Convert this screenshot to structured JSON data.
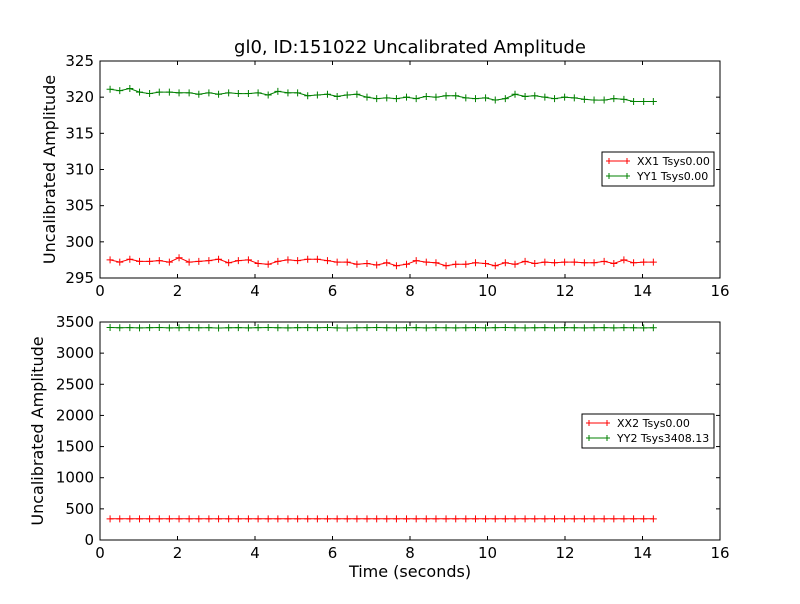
{
  "figure_title": "gl0, ID:151022 Uncalibrated Amplitude",
  "chart_data": [
    {
      "type": "line",
      "title": "gl0, ID:151022 Uncalibrated Amplitude",
      "xlabel": "",
      "ylabel": "Uncalibrated Amplitude",
      "xlim": [
        0,
        16
      ],
      "ylim": [
        295,
        325
      ],
      "xticks": [
        0,
        2,
        4,
        6,
        8,
        10,
        12,
        14,
        16
      ],
      "yticks": [
        295,
        300,
        305,
        310,
        315,
        320,
        325
      ],
      "legend_position": "center-right",
      "x": [
        0.26,
        0.51,
        0.77,
        1.02,
        1.28,
        1.53,
        1.79,
        2.04,
        2.3,
        2.55,
        2.81,
        3.06,
        3.32,
        3.57,
        3.83,
        4.08,
        4.34,
        4.59,
        4.85,
        5.1,
        5.36,
        5.61,
        5.87,
        6.12,
        6.38,
        6.63,
        6.89,
        7.14,
        7.4,
        7.65,
        7.91,
        8.16,
        8.42,
        8.67,
        8.93,
        9.18,
        9.44,
        9.69,
        9.95,
        10.2,
        10.46,
        10.71,
        10.97,
        11.22,
        11.48,
        11.73,
        11.99,
        12.24,
        12.5,
        12.75,
        13.01,
        13.26,
        13.52,
        13.77,
        14.03,
        14.28
      ],
      "series": [
        {
          "name": "XX1 Tsys0.00",
          "color": "#ff0000",
          "values": [
            297.5,
            297.2,
            297.6,
            297.3,
            297.3,
            297.4,
            297.2,
            297.8,
            297.2,
            297.3,
            297.4,
            297.6,
            297.1,
            297.4,
            297.5,
            297.0,
            296.9,
            297.3,
            297.5,
            297.4,
            297.6,
            297.6,
            297.4,
            297.2,
            297.2,
            296.9,
            297.0,
            296.8,
            297.1,
            296.7,
            296.9,
            297.4,
            297.2,
            297.1,
            296.7,
            296.9,
            296.9,
            297.1,
            297.0,
            296.7,
            297.1,
            296.9,
            297.3,
            297.0,
            297.2,
            297.1,
            297.2,
            297.2,
            297.1,
            297.1,
            297.3,
            297.0,
            297.5,
            297.1,
            297.2,
            297.2
          ]
        },
        {
          "name": "YY1 Tsys0.00",
          "color": "#008000",
          "values": [
            321.1,
            320.9,
            321.2,
            320.7,
            320.5,
            320.7,
            320.7,
            320.6,
            320.6,
            320.4,
            320.6,
            320.4,
            320.6,
            320.5,
            320.5,
            320.6,
            320.3,
            320.8,
            320.6,
            320.6,
            320.2,
            320.3,
            320.4,
            320.1,
            320.3,
            320.4,
            320.0,
            319.8,
            319.9,
            319.8,
            320.0,
            319.8,
            320.1,
            320.0,
            320.2,
            320.2,
            319.9,
            319.8,
            319.9,
            319.6,
            319.8,
            320.4,
            320.1,
            320.2,
            320.0,
            319.8,
            320.0,
            319.9,
            319.7,
            319.6,
            319.6,
            319.8,
            319.7,
            319.4,
            319.4,
            319.4
          ]
        }
      ]
    },
    {
      "type": "line",
      "title": "",
      "xlabel": "Time (seconds)",
      "ylabel": "Uncalibrated Amplitude",
      "xlim": [
        0,
        16
      ],
      "ylim": [
        0,
        3500
      ],
      "xticks": [
        0,
        2,
        4,
        6,
        8,
        10,
        12,
        14,
        16
      ],
      "yticks": [
        0,
        500,
        1000,
        1500,
        2000,
        2500,
        3000,
        3500
      ],
      "legend_position": "center-right",
      "x": [
        0.26,
        0.51,
        0.77,
        1.02,
        1.28,
        1.53,
        1.79,
        2.04,
        2.3,
        2.55,
        2.81,
        3.06,
        3.32,
        3.57,
        3.83,
        4.08,
        4.34,
        4.59,
        4.85,
        5.1,
        5.36,
        5.61,
        5.87,
        6.12,
        6.38,
        6.63,
        6.89,
        7.14,
        7.4,
        7.65,
        7.91,
        8.16,
        8.42,
        8.67,
        8.93,
        9.18,
        9.44,
        9.69,
        9.95,
        10.2,
        10.46,
        10.71,
        10.97,
        11.22,
        11.48,
        11.73,
        11.99,
        12.24,
        12.5,
        12.75,
        13.01,
        13.26,
        13.52,
        13.77,
        14.03,
        14.28
      ],
      "series": [
        {
          "name": "XX2 Tsys0.00",
          "color": "#ff0000",
          "values": [
            340,
            340,
            340,
            340,
            340,
            340,
            340,
            340,
            340,
            340,
            340,
            340,
            340,
            340,
            340,
            340,
            340,
            340,
            340,
            340,
            340,
            340,
            340,
            340,
            340,
            340,
            340,
            340,
            340,
            340,
            340,
            340,
            340,
            340,
            340,
            340,
            340,
            340,
            340,
            340,
            340,
            340,
            340,
            340,
            340,
            340,
            340,
            340,
            340,
            340,
            340,
            340,
            340,
            340,
            340,
            340
          ]
        },
        {
          "name": "YY2 Tsys3408.13",
          "color": "#008000",
          "values": [
            3412,
            3408,
            3410,
            3406,
            3409,
            3411,
            3405,
            3408,
            3410,
            3407,
            3409,
            3404,
            3408,
            3410,
            3406,
            3409,
            3411,
            3407,
            3405,
            3409,
            3410,
            3408,
            3412,
            3406,
            3404,
            3408,
            3409,
            3411,
            3407,
            3405,
            3408,
            3410,
            3406,
            3409,
            3407,
            3405,
            3408,
            3410,
            3406,
            3409,
            3411,
            3407,
            3405,
            3408,
            3410,
            3406,
            3409,
            3407,
            3405,
            3408,
            3410,
            3406,
            3409,
            3407,
            3405,
            3408
          ]
        }
      ]
    }
  ]
}
